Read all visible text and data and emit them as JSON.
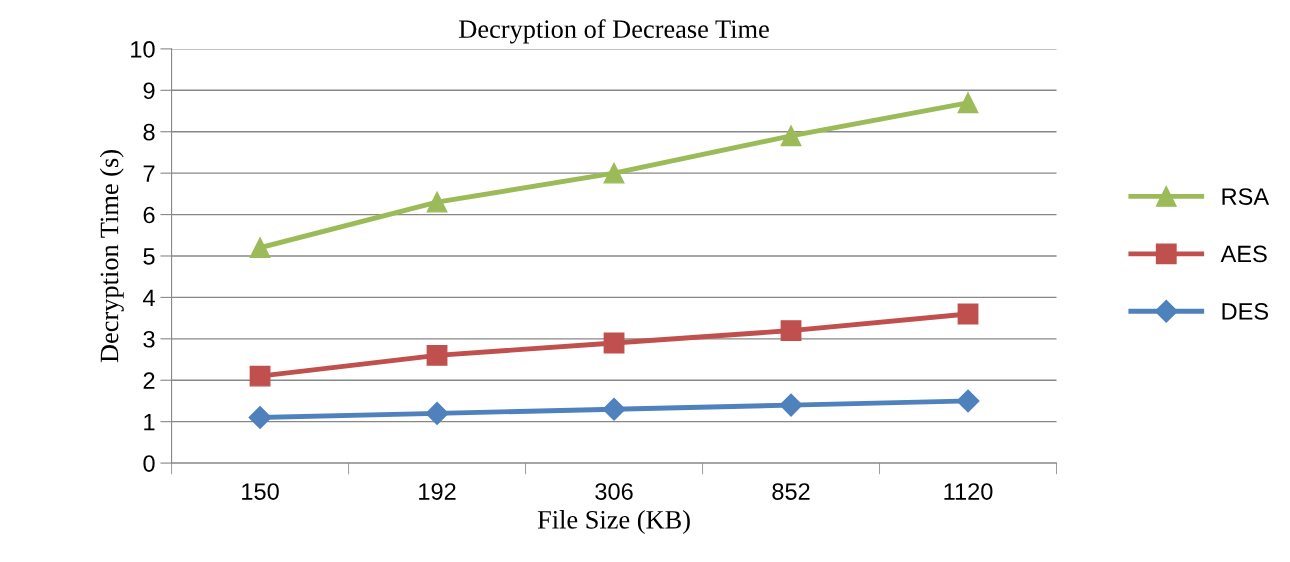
{
  "chart_data": {
    "type": "line",
    "title": "Decryption of Decrease Time",
    "xlabel": "File Size (KB)",
    "ylabel": "Decryption Time (s)",
    "categories": [
      "150",
      "192",
      "306",
      "852",
      "1120"
    ],
    "series": [
      {
        "name": "RSA",
        "color": "#9bbb59",
        "values": [
          5.2,
          6.3,
          7.0,
          7.9,
          8.7
        ],
        "marker": "triangle"
      },
      {
        "name": "AES",
        "color": "#c0504d",
        "values": [
          2.1,
          2.6,
          2.9,
          3.2,
          3.6
        ],
        "marker": "square"
      },
      {
        "name": "DES",
        "color": "#4f81bd",
        "values": [
          1.1,
          1.2,
          1.3,
          1.4,
          1.5
        ],
        "marker": "diamond"
      }
    ],
    "ylim": [
      0,
      10
    ],
    "yticks": [
      0,
      1,
      2,
      3,
      4,
      5,
      6,
      7,
      8,
      9,
      10
    ],
    "grid": "y",
    "legend": "right",
    "line_style": "solid"
  }
}
